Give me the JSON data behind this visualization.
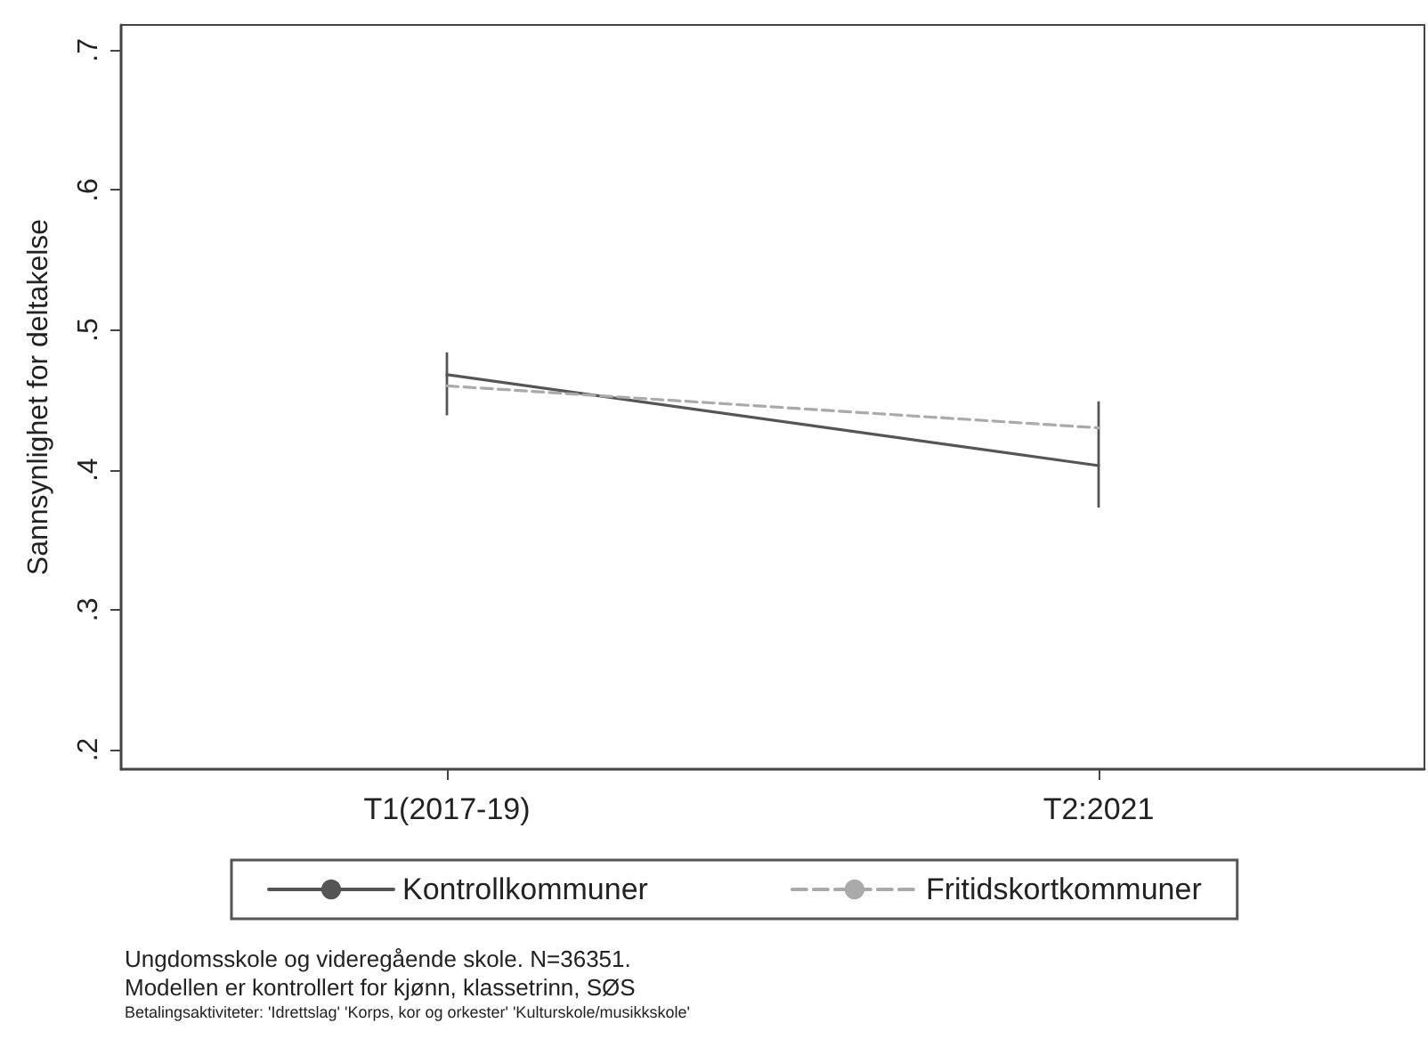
{
  "chart_data": {
    "type": "line",
    "ylabel": "Sannsynlighet for deltakelse",
    "categories": [
      "T1(2017-19)",
      "T2:2021"
    ],
    "series": [
      {
        "name": "Kontrollkommuner",
        "color": "#555555",
        "line_style": "solid",
        "values": [
          0.468,
          0.403
        ],
        "errors": [
          [
            0.439,
            0.484
          ],
          [
            0.373,
            0.449
          ]
        ]
      },
      {
        "name": "Fritidskortkommuner",
        "color": "#aaaaaa",
        "line_style": "dashed",
        "values": [
          0.46,
          0.43
        ]
      }
    ],
    "ylim": [
      0.186,
      0.718
    ],
    "yticks": [
      {
        "value": 0.2,
        "label": ".2"
      },
      {
        "value": 0.3,
        "label": ".3"
      },
      {
        "value": 0.4,
        "label": ".4"
      },
      {
        "value": 0.5,
        "label": ".5"
      },
      {
        "value": 0.6,
        "label": ".6"
      },
      {
        "value": 0.7,
        "label": ".7"
      }
    ],
    "marker": "none",
    "grid": false,
    "legend": "bottom",
    "annotations": [
      "Ungdomsskole og videregående skole. N=36351.",
      "Modellen er kontrollert for kjønn, klassetrinn, SØS",
      "Betalingsaktiviteter: 'Idrettslag' 'Korps, kor og orkester' 'Kulturskole/musikkskole'"
    ]
  }
}
